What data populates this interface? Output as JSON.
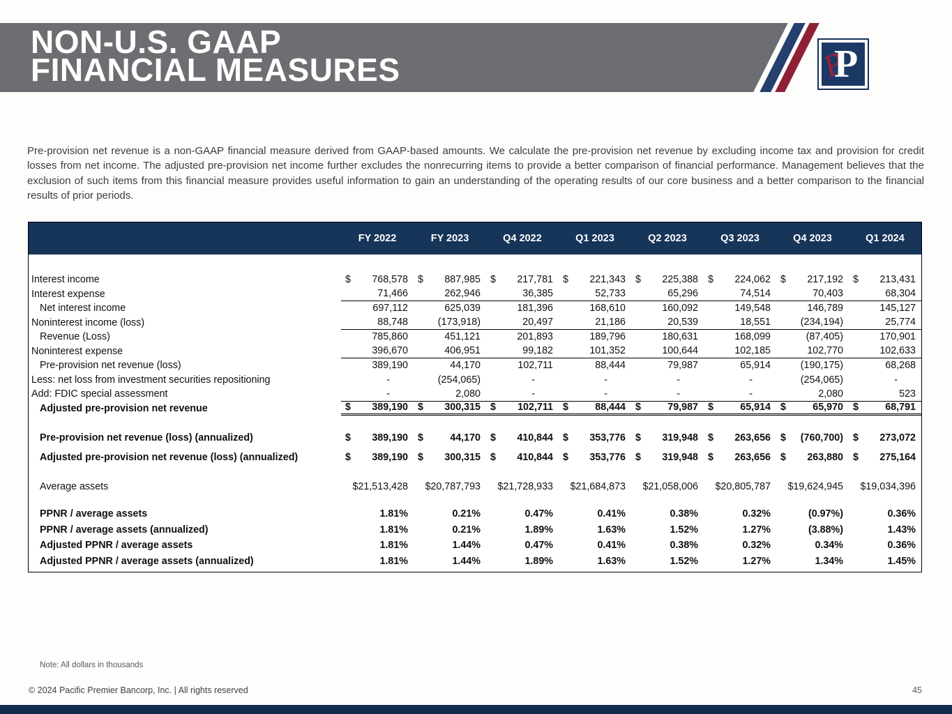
{
  "header": {
    "title_line1": "NON-U.S. GAAP",
    "title_line2": "FINANCIAL MEASURES",
    "logo_letter": "P"
  },
  "intro_paragraph": "Pre-provision net revenue is a non-GAAP financial measure derived from GAAP-based amounts. We calculate the pre-provision net revenue by excluding income tax and provision for credit losses from net income. The adjusted pre-provision net income further excludes the nonrecurring items to provide a better comparison of financial performance. Management believes that the exclusion of such items from this financial measure provides useful information to gain an understanding of the operating results of our core business and a better comparison to the financial results of prior periods.",
  "colors": {
    "header_gray": "#6d6e71",
    "table_header_navy": "#173459",
    "stripe_navy": "#24406e",
    "stripe_red": "#8e2138",
    "bottom_bar_navy": "#132c50"
  },
  "table": {
    "column_headers": [
      "FY 2022",
      "FY 2023",
      "Q4 2022",
      "Q1 2023",
      "Q2 2023",
      "Q3 2023",
      "Q4 2023",
      "Q1 2024"
    ],
    "rows": [
      {
        "type": "spacer",
        "size": "lg"
      },
      {
        "label": "Interest income",
        "indent": false,
        "bold": false,
        "dollar": true,
        "rule": "none",
        "values": [
          "768,578",
          "887,985",
          "217,781",
          "221,343",
          "225,388",
          "224,062",
          "217,192",
          "213,431"
        ]
      },
      {
        "label": "Interest expense",
        "indent": false,
        "bold": false,
        "dollar": false,
        "rule": "single",
        "values": [
          "71,466",
          "262,946",
          "36,385",
          "52,733",
          "65,296",
          "74,514",
          "70,403",
          "68,304"
        ]
      },
      {
        "label": "Net interest income",
        "indent": true,
        "bold": false,
        "dollar": false,
        "rule": "none",
        "values": [
          "697,112",
          "625,039",
          "181,396",
          "168,610",
          "160,092",
          "149,548",
          "146,789",
          "145,127"
        ]
      },
      {
        "label": "Noninterest income (loss)",
        "indent": false,
        "bold": false,
        "dollar": false,
        "rule": "single",
        "values": [
          "88,748",
          "(173,918)",
          "20,497",
          "21,186",
          "20,539",
          "18,551",
          "(234,194)",
          "25,774"
        ]
      },
      {
        "label": "Revenue (Loss)",
        "indent": true,
        "bold": false,
        "dollar": false,
        "rule": "none",
        "values": [
          "785,860",
          "451,121",
          "201,893",
          "189,796",
          "180,631",
          "168,099",
          "(87,405)",
          "170,901"
        ]
      },
      {
        "label": "Noninterest expense",
        "indent": false,
        "bold": false,
        "dollar": false,
        "rule": "single",
        "values": [
          "396,670",
          "406,951",
          "99,182",
          "101,352",
          "100,644",
          "102,185",
          "102,770",
          "102,633"
        ]
      },
      {
        "label": "Pre-provision net revenue (loss)",
        "indent": true,
        "bold": false,
        "dollar": false,
        "rule": "none",
        "values": [
          "389,190",
          "44,170",
          "102,711",
          "88,444",
          "79,987",
          "65,914",
          "(190,175)",
          "68,268"
        ]
      },
      {
        "label": "Less: net loss from investment securities repositioning",
        "indent": false,
        "bold": false,
        "dollar": false,
        "rule": "none",
        "values": [
          "-",
          "(254,065)",
          "-",
          "-",
          "-",
          "-",
          "(254,065)",
          "-"
        ]
      },
      {
        "label": "Add: FDIC special assessment",
        "indent": false,
        "bold": false,
        "dollar": false,
        "rule": "single",
        "values": [
          "-",
          "2,080",
          "-",
          "-",
          "-",
          "-",
          "2,080",
          "523"
        ]
      },
      {
        "label": "Adjusted pre-provision net revenue",
        "indent": true,
        "bold": true,
        "dollar": true,
        "rule": "double",
        "values": [
          "389,190",
          "300,315",
          "102,711",
          "88,444",
          "79,987",
          "65,914",
          "65,970",
          "68,791"
        ]
      },
      {
        "type": "spacer",
        "size": "md"
      },
      {
        "label": "Pre-provision net revenue (loss) (annualized)",
        "indent": true,
        "bold": true,
        "dollar": true,
        "rule": "none",
        "size": "lg",
        "values": [
          "389,190",
          "44,170",
          "410,844",
          "353,776",
          "319,948",
          "263,656",
          "(760,700)",
          "273,072"
        ]
      },
      {
        "label": "Adjusted pre-provision net revenue (loss) (annualized)",
        "indent": true,
        "bold": true,
        "dollar": true,
        "rule": "none",
        "size": "lg",
        "values": [
          "389,190",
          "300,315",
          "410,844",
          "353,776",
          "319,948",
          "263,656",
          "263,880",
          "275,164"
        ]
      },
      {
        "type": "spacer",
        "size": "sm"
      },
      {
        "label": "Average assets",
        "indent": true,
        "bold": false,
        "dollar": false,
        "rule": "none",
        "size": "lg",
        "values": [
          "$21,513,428",
          "$20,787,793",
          "$21,728,933",
          "$21,684,873",
          "$21,058,006",
          "$20,805,787",
          "$19,624,945",
          "$19,034,396"
        ]
      },
      {
        "type": "spacer",
        "size": "sm"
      },
      {
        "label": "PPNR / average assets",
        "indent": true,
        "bold": true,
        "dollar": false,
        "rule": "none",
        "size": "md",
        "values": [
          "1.81%",
          "0.21%",
          "0.47%",
          "0.41%",
          "0.38%",
          "0.32%",
          "(0.97%)",
          "0.36%"
        ]
      },
      {
        "label": "PPNR / average assets (annualized)",
        "indent": true,
        "bold": true,
        "dollar": false,
        "rule": "none",
        "size": "md",
        "values": [
          "1.81%",
          "0.21%",
          "1.89%",
          "1.63%",
          "1.52%",
          "1.27%",
          "(3.88%)",
          "1.43%"
        ]
      },
      {
        "label": "Adjusted PPNR / average assets",
        "indent": true,
        "bold": true,
        "dollar": false,
        "rule": "none",
        "size": "md",
        "values": [
          "1.81%",
          "1.44%",
          "0.47%",
          "0.41%",
          "0.38%",
          "0.32%",
          "0.34%",
          "0.36%"
        ]
      },
      {
        "label": "Adjusted PPNR / average assets (annualized)",
        "indent": true,
        "bold": true,
        "dollar": false,
        "rule": "none",
        "size": "md",
        "values": [
          "1.81%",
          "1.44%",
          "1.89%",
          "1.63%",
          "1.52%",
          "1.27%",
          "1.34%",
          "1.45%"
        ]
      }
    ]
  },
  "footer": {
    "note": "Note: All dollars in thousands",
    "copyright": "© 2024 Pacific Premier Bancorp, Inc. | All rights reserved",
    "page_number": "45"
  }
}
